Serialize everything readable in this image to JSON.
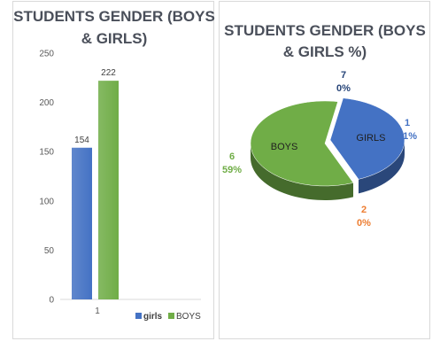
{
  "chart_data": [
    {
      "type": "bar",
      "title_lines": [
        "STUDENTS GENDER (BOYS",
        "& GIRLS)"
      ],
      "categories": [
        "1"
      ],
      "series": [
        {
          "name": "girls",
          "values": [
            154
          ],
          "color": "#4472c4"
        },
        {
          "name": "BOYS",
          "values": [
            222
          ],
          "color": "#70ad47"
        }
      ],
      "ylim": [
        0,
        250
      ],
      "yticks": [
        0,
        50,
        100,
        150,
        200,
        250
      ],
      "data_labels": [
        "154",
        "222"
      ],
      "legend": [
        "girls",
        "BOYS"
      ],
      "legend_position": "bottom-right",
      "grid": false
    },
    {
      "type": "pie",
      "title_lines": [
        "STUDENTS GENDER  (BOYS",
        "& GIRLS  %)"
      ],
      "slices": [
        {
          "category": "GIRLS",
          "value": 41,
          "label_index": "1",
          "label_percent": "41%",
          "color": "#4472c4",
          "label_color": "#4472c4"
        },
        {
          "category": "",
          "value": 0,
          "label_index": "2",
          "label_percent": "0%",
          "color": "#ed7d31",
          "label_color": "#ed7d31"
        },
        {
          "category": "BOYS",
          "value": 59,
          "label_index": "6",
          "label_percent": "59%",
          "color": "#70ad47",
          "label_color": "#70ad47"
        },
        {
          "category": "",
          "value": 0,
          "label_index": "7",
          "label_percent": "0%",
          "color": "#264478",
          "label_color": "#264478"
        }
      ]
    }
  ]
}
